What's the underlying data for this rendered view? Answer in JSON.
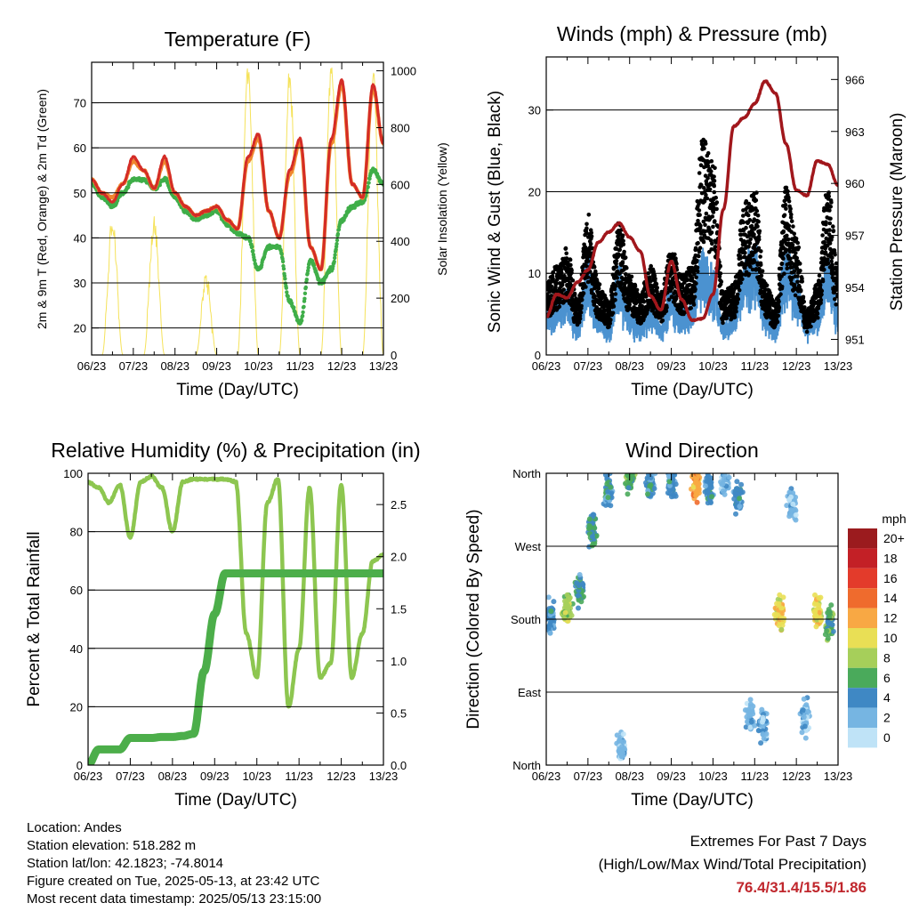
{
  "x_ticks": [
    "06/23",
    "07/23",
    "08/23",
    "09/23",
    "10/23",
    "11/23",
    "12/23",
    "13/23"
  ],
  "x_label": "Time (Day/UTC)",
  "colors": {
    "t2m": "#d42c26",
    "t9m": "#f0862f",
    "td": "#3fae49",
    "solar": "#f5e25a",
    "wind": "#4b92d0",
    "gust": "#000000",
    "pressure": "#a1171c",
    "rh": "#8dc650",
    "precip": "#4cae4a",
    "extremes": "#c0272d"
  },
  "chart_data": [
    {
      "type": "line",
      "title": "Temperature (F)",
      "xlabel": "Time (Day/UTC)",
      "ylabel": "2m & 9m T (Red, Orange) & 2m Td (Green)",
      "ylabel_right": "Solar Insolation (Yellow)",
      "ylim": [
        14,
        79
      ],
      "yticks": [
        20,
        30,
        40,
        50,
        60,
        70
      ],
      "y2lim": [
        0,
        1030
      ],
      "y2ticks": [
        0,
        200,
        400,
        600,
        800,
        1000
      ],
      "x": [
        6,
        6.25,
        6.5,
        6.75,
        7,
        7.25,
        7.5,
        7.75,
        8,
        8.25,
        8.5,
        8.75,
        9,
        9.25,
        9.5,
        9.75,
        10,
        10.25,
        10.5,
        10.75,
        11,
        11.25,
        11.5,
        11.75,
        12,
        12.25,
        12.5,
        12.75,
        13
      ],
      "series": [
        {
          "name": "2m T",
          "axis": "left",
          "values": [
            53,
            50,
            48,
            52,
            58,
            55,
            51,
            58,
            50,
            47,
            45,
            46,
            47,
            44,
            42,
            58,
            63,
            46,
            40,
            55,
            62,
            38,
            33,
            62,
            75,
            52,
            49,
            74,
            61
          ]
        },
        {
          "name": "9m T",
          "axis": "left",
          "values": [
            53,
            50,
            49,
            52,
            57,
            55,
            51,
            57,
            50,
            47,
            45,
            46,
            47,
            44,
            42,
            57,
            62,
            46,
            40,
            54,
            61,
            38,
            33,
            61,
            74,
            52,
            49,
            73,
            61
          ]
        },
        {
          "name": "2m Td",
          "axis": "left",
          "values": [
            52,
            49,
            47,
            50,
            53,
            53,
            51,
            53,
            49,
            46,
            44,
            45,
            46,
            43,
            41,
            40,
            33,
            38,
            38,
            26,
            21,
            35,
            30,
            33,
            44,
            47,
            48,
            55,
            52
          ]
        },
        {
          "name": "Solar Insolation",
          "axis": "right",
          "values": [
            0,
            0,
            450,
            0,
            0,
            0,
            450,
            0,
            0,
            0,
            0,
            270,
            0,
            0,
            0,
            1000,
            0,
            0,
            0,
            980,
            0,
            0,
            0,
            1010,
            0,
            0,
            0,
            980,
            0
          ]
        }
      ]
    },
    {
      "type": "line",
      "title": "Winds (mph) & Pressure (mb)",
      "xlabel": "Time (Day/UTC)",
      "ylabel": "Sonic Wind & Gust (Blue, Black)",
      "ylabel_right": "Station Pressure (Maroon)",
      "ylim": [
        0,
        36.5
      ],
      "yticks": [
        0,
        10,
        20,
        30
      ],
      "y2lim": [
        950.1,
        967.3
      ],
      "y2ticks": [
        951,
        954,
        957,
        960,
        963,
        966
      ],
      "x": [
        6,
        6.25,
        6.5,
        6.75,
        7,
        7.25,
        7.5,
        7.75,
        8,
        8.25,
        8.5,
        8.75,
        9,
        9.25,
        9.5,
        9.75,
        10,
        10.25,
        10.5,
        10.75,
        11,
        11.25,
        11.5,
        11.75,
        12,
        12.25,
        12.5,
        12.75,
        13
      ],
      "series": [
        {
          "name": "Wind",
          "axis": "left",
          "values": [
            4,
            5,
            6,
            3,
            9,
            4,
            3,
            8,
            4,
            3,
            5,
            3,
            6,
            4,
            5,
            10,
            8,
            3,
            4,
            9,
            10,
            4,
            3,
            10,
            7,
            3,
            4,
            9,
            5
          ]
        },
        {
          "name": "Gust",
          "axis": "left",
          "values": [
            8,
            10,
            12,
            6,
            16,
            8,
            6,
            15,
            9,
            7,
            10,
            7,
            12,
            9,
            10,
            25,
            22,
            7,
            8,
            17,
            19,
            8,
            6,
            19,
            13,
            5,
            8,
            20,
            10
          ]
        },
        {
          "name": "Station Pressure",
          "axis": "right",
          "values": [
            952.3,
            953.6,
            953.4,
            954.3,
            955.0,
            956.6,
            957.2,
            957.7,
            956.9,
            956.1,
            953.5,
            952.7,
            955.5,
            953.3,
            952.1,
            952.2,
            953.6,
            958.5,
            963.3,
            963.8,
            964.6,
            965.9,
            965.2,
            962.3,
            959.6,
            959.3,
            961.3,
            961.1,
            959.9
          ]
        }
      ]
    },
    {
      "type": "line",
      "title": "Relative Humidity (%) & Precipitation (in)",
      "xlabel": "Time (Day/UTC)",
      "ylabel": "Percent & Total Rainfall",
      "ylim": [
        0,
        100
      ],
      "yticks": [
        0,
        20,
        40,
        60,
        80,
        100
      ],
      "y2lim": [
        0,
        2.8
      ],
      "y2ticks": [
        0.0,
        0.5,
        1.0,
        1.5,
        2.0,
        2.5
      ],
      "x": [
        6,
        6.25,
        6.5,
        6.75,
        7,
        7.25,
        7.5,
        7.75,
        8,
        8.25,
        8.5,
        8.75,
        9,
        9.25,
        9.5,
        9.75,
        10,
        10.25,
        10.5,
        10.75,
        11,
        11.25,
        11.5,
        11.75,
        12,
        12.25,
        12.5,
        12.75,
        13
      ],
      "series": [
        {
          "name": "Relative Humidity",
          "axis": "left",
          "values": [
            97,
            95,
            90,
            96,
            78,
            97,
            99,
            95,
            80,
            97,
            98,
            98,
            98,
            98,
            97,
            45,
            30,
            90,
            98,
            20,
            40,
            95,
            30,
            35,
            96,
            30,
            45,
            70,
            72
          ]
        },
        {
          "name": "Total Precipitation",
          "axis": "right",
          "values": [
            0.0,
            0.15,
            0.15,
            0.15,
            0.26,
            0.26,
            0.26,
            0.27,
            0.27,
            0.28,
            0.3,
            0.9,
            1.45,
            1.84,
            1.84,
            1.84,
            1.84,
            1.84,
            1.84,
            1.84,
            1.84,
            1.84,
            1.84,
            1.84,
            1.84,
            1.84,
            1.84,
            1.84,
            1.84
          ]
        }
      ]
    },
    {
      "type": "scatter",
      "title": "Wind Direction",
      "xlabel": "Time (Day/UTC)",
      "ylabel": "Direction (Colored By Speed)",
      "yticks": [
        "North",
        "East",
        "South",
        "West",
        "North"
      ],
      "ylim": [
        0,
        360
      ],
      "colorbar": {
        "title": "mph",
        "labels": [
          "20+",
          "18",
          "16",
          "14",
          "12",
          "10",
          "8",
          "6",
          "4",
          "2",
          "0"
        ],
        "colors": [
          "#9b1b1e",
          "#c32026",
          "#e33b2b",
          "#ef6b2d",
          "#f8a844",
          "#e9df55",
          "#a6cf5a",
          "#4aaa5b",
          "#3f88c4",
          "#76b5e2",
          "#bfe3f7"
        ]
      },
      "clusters": [
        {
          "x": 6.1,
          "y": 180,
          "speed": 4
        },
        {
          "x": 6.5,
          "y": 195,
          "speed": 8
        },
        {
          "x": 6.8,
          "y": 215,
          "speed": 5
        },
        {
          "x": 7.1,
          "y": 290,
          "speed": 5
        },
        {
          "x": 7.5,
          "y": 340,
          "speed": 4
        },
        {
          "x": 7.8,
          "y": 20,
          "speed": 2
        },
        {
          "x": 8.0,
          "y": 355,
          "speed": 6
        },
        {
          "x": 8.5,
          "y": 345,
          "speed": 4
        },
        {
          "x": 9.0,
          "y": 348,
          "speed": 4
        },
        {
          "x": 9.6,
          "y": 348,
          "speed": 12
        },
        {
          "x": 9.9,
          "y": 340,
          "speed": 4
        },
        {
          "x": 10.3,
          "y": 350,
          "speed": 2
        },
        {
          "x": 10.6,
          "y": 330,
          "speed": 4
        },
        {
          "x": 10.9,
          "y": 60,
          "speed": 2
        },
        {
          "x": 11.2,
          "y": 50,
          "speed": 2
        },
        {
          "x": 11.6,
          "y": 190,
          "speed": 10
        },
        {
          "x": 11.9,
          "y": 320,
          "speed": 2
        },
        {
          "x": 12.2,
          "y": 60,
          "speed": 2
        },
        {
          "x": 12.5,
          "y": 190,
          "speed": 10
        },
        {
          "x": 12.8,
          "y": 175,
          "speed": 6
        }
      ]
    }
  ],
  "info": {
    "location": "Location: Andes",
    "elevation": "Station elevation: 518.282 m",
    "latlon": "Station lat/lon: 42.1823; -74.8014",
    "created": "Figure created on Tue, 2025-05-13, at 23:42 UTC",
    "latest": "Most recent data timestamp: 2025/05/13 23:15:00"
  },
  "extremes": {
    "title": "Extremes For Past 7 Days",
    "subtitle": "(High/Low/Max Wind/Total Precipitation)",
    "values": "76.4/31.4/15.5/1.86"
  }
}
